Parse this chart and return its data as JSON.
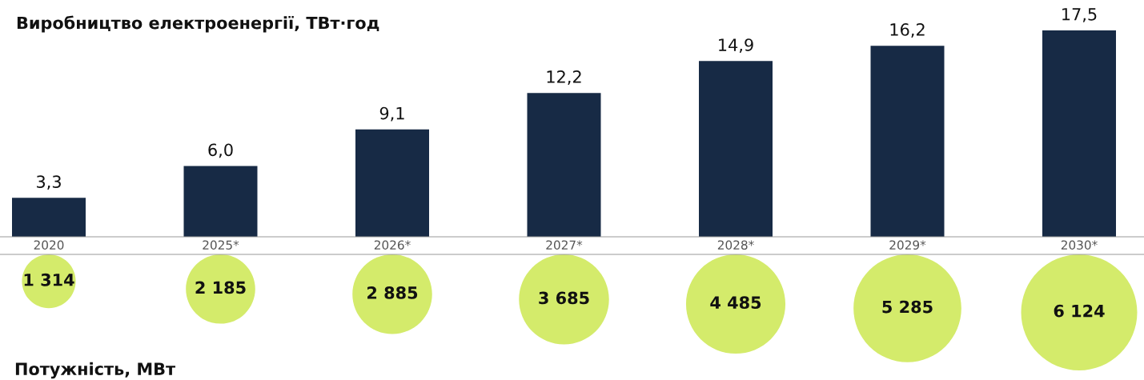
{
  "chart_data": [
    {
      "type": "bar",
      "title": "Виробництво електроенергії, ТВт·год",
      "categories": [
        "2020",
        "2025*",
        "2026*",
        "2027*",
        "2028*",
        "2029*",
        "2030*"
      ],
      "values": [
        3.3,
        6.0,
        9.1,
        12.2,
        14.9,
        16.2,
        17.5
      ],
      "value_labels": [
        "3,3",
        "6,0",
        "9,1",
        "12,2",
        "14,9",
        "16,2",
        "17,5"
      ],
      "color": "#172a45"
    },
    {
      "type": "other",
      "title": "Потужність, МВт",
      "categories": [
        null,
        null,
        null,
        null,
        null,
        null,
        null
      ],
      "values": [
        1314,
        2185,
        2885,
        3685,
        4485,
        5285,
        6124
      ],
      "value_labels": [
        "1 314",
        "2 185",
        "2 885",
        "3 685",
        "4 485",
        "5 285",
        "6 124"
      ],
      "color": "#d4eb6b"
    }
  ]
}
